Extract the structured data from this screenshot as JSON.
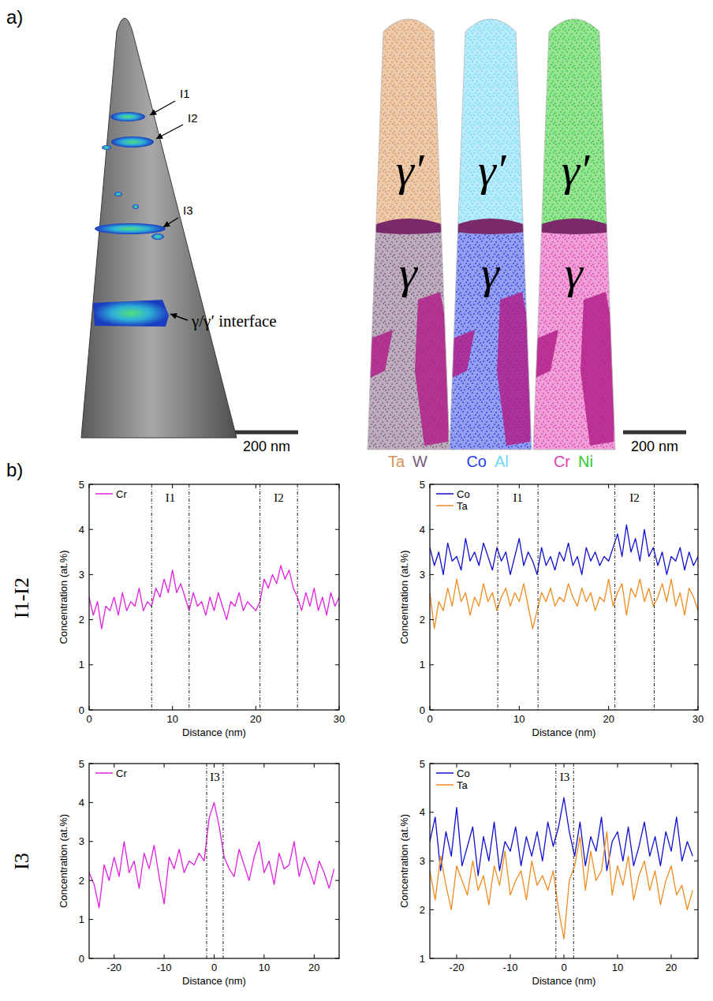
{
  "panel_labels": [
    "a)",
    "b)"
  ],
  "row_labels": [
    "I1-I2",
    "I3"
  ],
  "panel_a": {
    "tip": {
      "labels": [
        "I1",
        "I2",
        "I3",
        "γ/γ′ interface"
      ],
      "scale_bar": "200 nm"
    },
    "maps": {
      "phases": [
        "γ′",
        "γ"
      ],
      "scale_bar": "200 nm",
      "columns": [
        {
          "elements": [
            {
              "name": "Ta",
              "color": "#d9955a"
            },
            {
              "name": "W",
              "color": "#7a5a7a"
            }
          ]
        },
        {
          "elements": [
            {
              "name": "Co",
              "color": "#2a3ee0"
            },
            {
              "name": "Al",
              "color": "#6fd8f5"
            }
          ]
        },
        {
          "elements": [
            {
              "name": "Cr",
              "color": "#e040b0"
            },
            {
              "name": "Ni",
              "color": "#2ec82e"
            }
          ]
        }
      ]
    }
  },
  "chart_data": [
    {
      "type": "line",
      "xlabel": "Distance (nm)",
      "ylabel": "Concentration (at.%)",
      "xlim": [
        0,
        30
      ],
      "xticks": [
        0,
        10,
        20,
        30
      ],
      "ylim": [
        0,
        5
      ],
      "yticks": [
        0,
        1,
        2,
        3,
        4,
        5
      ],
      "legend": "upper left",
      "x": [
        0,
        0.5,
        1,
        1.5,
        2,
        2.5,
        3,
        3.5,
        4,
        4.5,
        5,
        5.5,
        6,
        6.5,
        7,
        7.5,
        8,
        8.5,
        9,
        9.5,
        10,
        10.5,
        11,
        11.5,
        12,
        12.5,
        13,
        13.5,
        14,
        14.5,
        15,
        15.5,
        16,
        16.5,
        17,
        17.5,
        18,
        18.5,
        19,
        19.5,
        20,
        20.5,
        21,
        21.5,
        22,
        22.5,
        23,
        23.5,
        24,
        24.5,
        25,
        25.5,
        26,
        26.5,
        27,
        27.5,
        28,
        28.5,
        29,
        29.5,
        30
      ],
      "series": [
        {
          "name": "Cr",
          "color": "#e020e0",
          "values": [
            2.5,
            2.1,
            2.4,
            1.8,
            2.3,
            2.2,
            2.5,
            2.1,
            2.6,
            2.2,
            2.4,
            2.3,
            2.7,
            2.2,
            2.4,
            2.3,
            2.7,
            2.5,
            2.9,
            2.6,
            3.1,
            2.6,
            2.8,
            2.5,
            2.2,
            2.6,
            2.3,
            2.4,
            2.1,
            2.5,
            2.2,
            2.6,
            2.3,
            2.0,
            2.4,
            2.3,
            2.6,
            2.2,
            2.4,
            2.3,
            2.2,
            2.4,
            2.9,
            2.7,
            3.0,
            2.8,
            3.2,
            2.9,
            3.1,
            2.7,
            2.5,
            2.2,
            2.6,
            2.3,
            2.7,
            2.2,
            2.5,
            2.1,
            2.6,
            2.3,
            2.5
          ]
        }
      ],
      "regions": [
        {
          "label": "I1",
          "start": 7.5,
          "end": 12
        },
        {
          "label": "I2",
          "start": 20.5,
          "end": 25
        }
      ]
    },
    {
      "type": "line",
      "xlabel": "Distance (nm)",
      "ylabel": "Concentration (at.%)",
      "xlim": [
        0,
        30
      ],
      "xticks": [
        0,
        10,
        20,
        30
      ],
      "ylim": [
        0,
        5
      ],
      "yticks": [
        0,
        1,
        2,
        3,
        4,
        5
      ],
      "legend": "upper left",
      "x": [
        0,
        0.5,
        1,
        1.5,
        2,
        2.5,
        3,
        3.5,
        4,
        4.5,
        5,
        5.5,
        6,
        6.5,
        7,
        7.5,
        8,
        8.5,
        9,
        9.5,
        10,
        10.5,
        11,
        11.5,
        12,
        12.5,
        13,
        13.5,
        14,
        14.5,
        15,
        15.5,
        16,
        16.5,
        17,
        17.5,
        18,
        18.5,
        19,
        19.5,
        20,
        20.5,
        21,
        21.5,
        22,
        22.5,
        23,
        23.5,
        24,
        24.5,
        25,
        25.5,
        26,
        26.5,
        27,
        27.5,
        28,
        28.5,
        29,
        29.5,
        30
      ],
      "series": [
        {
          "name": "Co",
          "color": "#1010d0",
          "values": [
            3.6,
            3.2,
            3.5,
            3.0,
            3.7,
            3.3,
            3.4,
            3.1,
            3.8,
            3.3,
            3.5,
            3.2,
            3.7,
            3.4,
            3.1,
            3.6,
            3.3,
            3.5,
            3.0,
            3.4,
            3.8,
            3.2,
            3.5,
            3.3,
            3.0,
            3.6,
            3.2,
            3.4,
            3.1,
            3.5,
            3.3,
            3.7,
            3.2,
            3.4,
            3.0,
            3.6,
            3.3,
            3.5,
            3.2,
            3.4,
            3.3,
            3.6,
            3.9,
            3.4,
            4.1,
            3.5,
            3.8,
            3.3,
            4.0,
            3.4,
            3.6,
            3.2,
            3.5,
            3.0,
            3.4,
            3.3,
            3.6,
            3.1,
            3.5,
            3.2,
            3.4
          ]
        },
        {
          "name": "Ta",
          "color": "#f08c20",
          "values": [
            2.6,
            1.8,
            2.4,
            2.2,
            2.7,
            2.3,
            2.9,
            2.4,
            2.6,
            2.1,
            2.5,
            2.3,
            2.8,
            2.4,
            2.6,
            2.2,
            2.5,
            2.7,
            2.3,
            2.6,
            2.4,
            2.8,
            2.3,
            1.8,
            2.2,
            2.6,
            2.4,
            2.7,
            2.3,
            2.5,
            2.4,
            2.8,
            2.5,
            2.3,
            2.7,
            2.4,
            2.6,
            2.2,
            2.5,
            2.4,
            2.9,
            2.3,
            2.6,
            2.8,
            2.1,
            2.7,
            2.5,
            2.9,
            2.4,
            2.7,
            2.3,
            2.5,
            2.8,
            2.4,
            2.9,
            2.3,
            2.6,
            2.1,
            2.7,
            2.5,
            2.2
          ]
        }
      ],
      "regions": [
        {
          "label": "I1",
          "start": 7.6,
          "end": 12.1
        },
        {
          "label": "I2",
          "start": 20.7,
          "end": 25.1
        }
      ]
    },
    {
      "type": "line",
      "xlabel": "Distance (nm)",
      "ylabel": "Concentration (at.%)",
      "xlim": [
        -25,
        25
      ],
      "xticks": [
        -20,
        -10,
        0,
        10,
        20
      ],
      "ylim": [
        0,
        5
      ],
      "yticks": [
        0,
        1,
        2,
        3,
        4,
        5
      ],
      "legend": "upper left",
      "x": [
        -25,
        -24,
        -23,
        -22,
        -21,
        -20,
        -19,
        -18,
        -17,
        -16,
        -15,
        -14,
        -13,
        -12,
        -11,
        -10,
        -9,
        -8,
        -7,
        -6,
        -5,
        -4,
        -3,
        -2,
        -1,
        0,
        1,
        2,
        3,
        4,
        5,
        6,
        7,
        8,
        9,
        10,
        11,
        12,
        13,
        14,
        15,
        16,
        17,
        18,
        19,
        20,
        21,
        22,
        23,
        24
      ],
      "series": [
        {
          "name": "Cr",
          "color": "#e020e0",
          "values": [
            2.2,
            1.9,
            1.3,
            2.4,
            2.0,
            2.6,
            2.1,
            3.0,
            2.2,
            2.5,
            1.8,
            2.7,
            2.3,
            2.9,
            2.1,
            1.4,
            2.6,
            2.3,
            2.8,
            2.2,
            2.5,
            2.4,
            2.7,
            2.5,
            3.6,
            4.0,
            3.4,
            2.6,
            2.3,
            2.1,
            2.8,
            2.4,
            2.0,
            2.6,
            3.0,
            2.2,
            2.5,
            1.9,
            2.7,
            2.3,
            2.4,
            3.0,
            2.1,
            2.6,
            2.3,
            1.9,
            2.5,
            2.2,
            1.8,
            2.3
          ]
        }
      ],
      "regions": [
        {
          "label": "I3",
          "start": -1.5,
          "end": 1.8
        }
      ]
    },
    {
      "type": "line",
      "xlabel": "Distance (nm)",
      "ylabel": "Concentration (at.%)",
      "xlim": [
        -25,
        25
      ],
      "xticks": [
        -20,
        -10,
        0,
        10,
        20
      ],
      "ylim": [
        1,
        5
      ],
      "yticks": [
        1,
        2,
        3,
        4,
        5
      ],
      "legend": "upper left",
      "x": [
        -25,
        -24,
        -23,
        -22,
        -21,
        -20,
        -19,
        -18,
        -17,
        -16,
        -15,
        -14,
        -13,
        -12,
        -11,
        -10,
        -9,
        -8,
        -7,
        -6,
        -5,
        -4,
        -3,
        -2,
        -1,
        0,
        1,
        2,
        3,
        4,
        5,
        6,
        7,
        8,
        9,
        10,
        11,
        12,
        13,
        14,
        15,
        16,
        17,
        18,
        19,
        20,
        21,
        22,
        23,
        24
      ],
      "series": [
        {
          "name": "Co",
          "color": "#1010d0",
          "values": [
            3.4,
            3.9,
            2.8,
            3.6,
            3.1,
            4.1,
            2.9,
            3.3,
            3.7,
            2.7,
            3.5,
            3.0,
            3.8,
            2.8,
            3.4,
            3.2,
            3.7,
            2.9,
            3.5,
            3.1,
            3.6,
            3.0,
            3.8,
            3.3,
            3.7,
            4.3,
            3.6,
            3.1,
            3.8,
            2.9,
            3.5,
            3.2,
            3.9,
            2.8,
            3.4,
            3.6,
            3.0,
            3.7,
            2.9,
            3.3,
            3.8,
            3.1,
            3.5,
            2.9,
            3.6,
            3.2,
            3.9,
            3.0,
            3.4,
            3.1
          ]
        },
        {
          "name": "Ta",
          "color": "#f08c20",
          "values": [
            2.8,
            2.2,
            3.1,
            2.5,
            2.0,
            2.9,
            2.6,
            2.3,
            3.0,
            2.4,
            2.7,
            2.1,
            2.9,
            2.5,
            3.2,
            2.3,
            2.6,
            2.8,
            2.2,
            3.0,
            2.5,
            2.7,
            2.4,
            2.8,
            2.0,
            1.4,
            2.6,
            2.9,
            3.5,
            2.4,
            3.2,
            2.6,
            2.8,
            3.6,
            2.3,
            2.9,
            2.5,
            3.1,
            2.2,
            2.7,
            3.0,
            2.4,
            2.8,
            2.1,
            2.6,
            2.9,
            2.3,
            2.5,
            2.0,
            2.4
          ]
        }
      ],
      "regions": [
        {
          "label": "I3",
          "start": -1.5,
          "end": 1.8
        }
      ]
    }
  ]
}
